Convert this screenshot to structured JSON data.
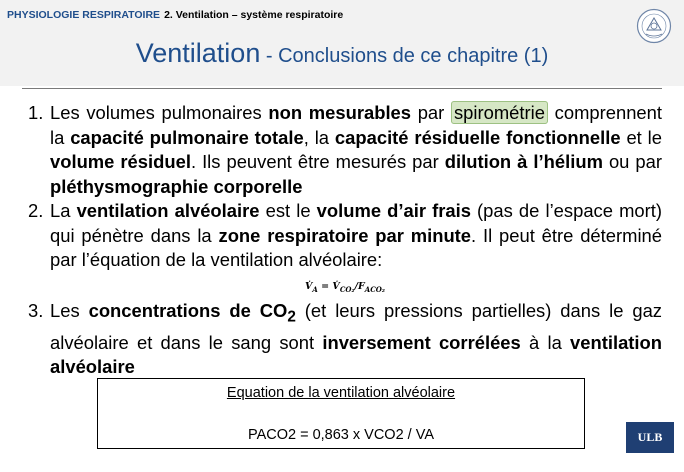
{
  "header": {
    "course": "PHYSIOLOGIE RESPIRATOIRE",
    "chapter": "2. Ventilation – système respiratoire",
    "title_main": "Ventilation",
    "title_sub": " - Conclusions de ce chapitre (1)"
  },
  "items": [
    {
      "num": "1.",
      "parts": [
        "Les volumes pulmonaires ",
        "non mesurables",
        " par ",
        "spirométrie",
        " comprennent la ",
        "capacité pulmonaire totale",
        ", la ",
        "capacité résiduelle fonctionnelle",
        " et le ",
        "volume résiduel",
        ". Ils peuvent être mesurés par ",
        "dilution à l’hélium",
        " ou par ",
        "pléthysmographie corporelle"
      ]
    },
    {
      "num": "2.",
      "parts": [
        "La ",
        "ventilation alvéolaire",
        " est le ",
        "volume d’air frais",
        " (pas de l’espace mort) qui pénètre dans la ",
        "zone respiratoire par minute",
        ". Il peut être déterminé par l’équation de la ventilation alvéolaire:"
      ]
    },
    {
      "num": "3.",
      "parts": [
        "Les ",
        "concentrations de CO",
        "2",
        " (et leurs pressions partielles) dans le gaz alvéolaire et dans le sang sont ",
        "inversement corrélées",
        " à la ",
        "ventilation alvéolaire"
      ]
    }
  ],
  "formula": {
    "v": "V̇",
    "a": "A",
    "eq": " = V̇",
    "co2": "CO₂",
    "slash": "/F",
    "aco2": "ACO₂"
  },
  "equation_box": {
    "title": "Equation de la ventilation alvéolaire",
    "text": "PACO2 = 0,863 x VCO2 / VA"
  },
  "logo": "ULB",
  "colors": {
    "accent": "#1f4e8c",
    "highlight": "#d6e7c5",
    "logo_bg": "#1f3f73"
  }
}
